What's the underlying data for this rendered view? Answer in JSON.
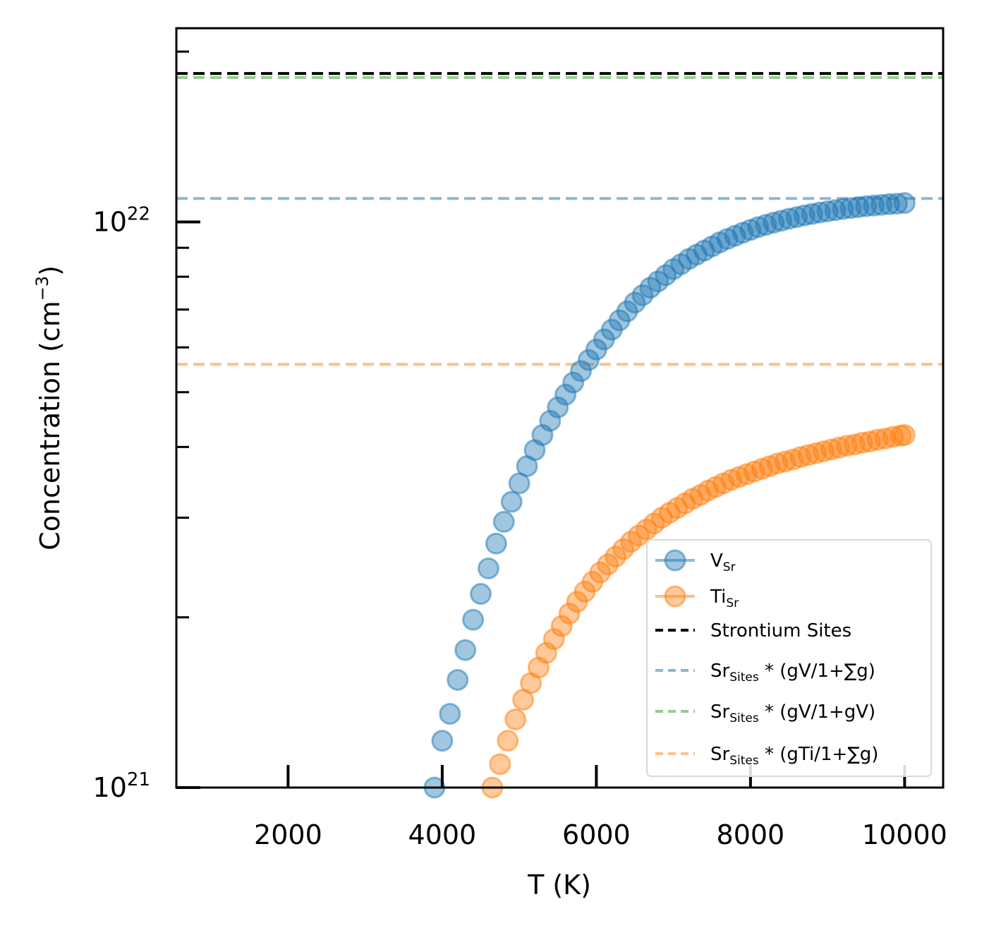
{
  "chart_data": {
    "type": "scatter",
    "title": "",
    "xlabel": "T (K)",
    "ylabel": {
      "base": "Concentration (cm",
      "sup": "−3",
      "tail": ")"
    },
    "xlim": [
      550,
      10500
    ],
    "ylim": [
      1e+21,
      2.2e+22
    ],
    "y_scale": "log",
    "x_ticks": [
      2000,
      4000,
      6000,
      8000,
      10000
    ],
    "x_tick_labels": [
      "2000",
      "4000",
      "6000",
      "8000",
      "10000"
    ],
    "y_tick_labels": [
      {
        "value": 1e+21,
        "base": "10",
        "exp": "21"
      },
      {
        "value": 1e+22,
        "base": "10",
        "exp": "22"
      }
    ],
    "grid": false,
    "legend_position": "lower-right",
    "legend": [
      {
        "kind": "marker",
        "color": "#1f77b4",
        "text": "V",
        "sub": "Sr"
      },
      {
        "kind": "marker",
        "color": "#ff7f0e",
        "text": "Ti",
        "sub": "Sr"
      },
      {
        "kind": "hline",
        "color": "#000000",
        "text": "Strontium Sites"
      },
      {
        "kind": "hline",
        "color": "#8ab7d7",
        "text": "Sr",
        "sub": "Sites",
        "formula": " * (gV/1+∑g)"
      },
      {
        "kind": "hline",
        "color": "#97cb90",
        "text": "Sr",
        "sub": "Sites",
        "formula": " * (gV/1+gV)"
      },
      {
        "kind": "hline",
        "color": "#ffbf87",
        "text": "Sr",
        "sub": "Sites",
        "formula": " * (gTi/1+∑g)"
      }
    ],
    "hlines": [
      {
        "name": "Strontium Sites",
        "y": 1.83e+22,
        "color": "#000000"
      },
      {
        "name": "SrSites * (gVSr/1+gVSr)",
        "y": 1.8e+22,
        "color": "#97cb90"
      },
      {
        "name": "SrSites * (gVSr/1+∑g)",
        "y": 1.1e+22,
        "color": "#8ab7d7"
      },
      {
        "name": "SrSites * (gTiSr/1+∑g)",
        "y": 5.6e+21,
        "color": "#ffbf87"
      }
    ],
    "series": [
      {
        "name": "VSr",
        "color": "#1f77b4",
        "x": [
          3900,
          4000,
          4100,
          4200,
          4300,
          4400,
          4500,
          4600,
          4700,
          4800,
          4900,
          5000,
          5100,
          5200,
          5300,
          5400,
          5500,
          5600,
          5700,
          5800,
          5900,
          6000,
          6100,
          6200,
          6300,
          6400,
          6500,
          6600,
          6700,
          6800,
          6900,
          7000,
          7100,
          7200,
          7300,
          7400,
          7500,
          7600,
          7700,
          7800,
          7900,
          8000,
          8100,
          8200,
          8300,
          8400,
          8500,
          8600,
          8700,
          8800,
          8900,
          9000,
          9100,
          9200,
          9300,
          9400,
          9500,
          9600,
          9700,
          9800,
          9900,
          10000
        ],
        "y": [
          1e+21,
          1.21e+21,
          1.35e+21,
          1.55e+21,
          1.75e+21,
          1.98e+21,
          2.2e+21,
          2.44e+21,
          2.7e+21,
          2.95e+21,
          3.2e+21,
          3.45e+21,
          3.7e+21,
          3.95e+21,
          4.2e+21,
          4.45e+21,
          4.7e+21,
          4.95e+21,
          5.2e+21,
          5.45e+21,
          5.7e+21,
          5.95e+21,
          6.2e+21,
          6.45e+21,
          6.7e+21,
          6.95e+21,
          7.2e+21,
          7.42e+21,
          7.65e+21,
          7.85e+21,
          8.05e+21,
          8.25e+21,
          8.42e+21,
          8.6e+21,
          8.75e+21,
          8.9e+21,
          9.05e+21,
          9.2e+21,
          9.33e+21,
          9.45e+21,
          9.57e+21,
          9.68e+21,
          9.79e+21,
          9.88e+21,
          9.97e+21,
          1.005e+22,
          1.013e+22,
          1.02e+22,
          1.027e+22,
          1.033e+22,
          1.039e+22,
          1.044e+22,
          1.049e+22,
          1.054e+22,
          1.058e+22,
          1.062e+22,
          1.066e+22,
          1.069e+22,
          1.072e+22,
          1.075e+22,
          1.077e+22,
          1.08e+22
        ]
      },
      {
        "name": "TiSr",
        "color": "#ff7f0e",
        "x": [
          4650,
          4750,
          4850,
          4950,
          5050,
          5150,
          5250,
          5350,
          5450,
          5550,
          5650,
          5750,
          5850,
          5950,
          6050,
          6150,
          6250,
          6350,
          6450,
          6550,
          6650,
          6750,
          6850,
          6950,
          7050,
          7150,
          7250,
          7350,
          7450,
          7550,
          7650,
          7750,
          7850,
          7950,
          8050,
          8150,
          8250,
          8350,
          8450,
          8550,
          8650,
          8750,
          8850,
          8950,
          9050,
          9150,
          9250,
          9350,
          9450,
          9550,
          9650,
          9750,
          9850,
          9950,
          10000
        ],
        "y": [
          1e+21,
          1.1e+21,
          1.21e+21,
          1.32e+21,
          1.43e+21,
          1.53e+21,
          1.63e+21,
          1.73e+21,
          1.83e+21,
          1.93e+21,
          2.03e+21,
          2.13e+21,
          2.22e+21,
          2.31e+21,
          2.4e+21,
          2.48e+21,
          2.56e+21,
          2.64e+21,
          2.72e+21,
          2.79e+21,
          2.86e+21,
          2.93e+21,
          3e+21,
          3.06e+21,
          3.12e+21,
          3.18e+21,
          3.24e+21,
          3.29e+21,
          3.35e+21,
          3.4e+21,
          3.45e+21,
          3.5e+21,
          3.54e+21,
          3.58e+21,
          3.62e+21,
          3.66e+21,
          3.7e+21,
          3.74e+21,
          3.77e+21,
          3.8e+21,
          3.84e+21,
          3.87e+21,
          3.9e+21,
          3.93e+21,
          3.96e+21,
          3.99e+21,
          4.02e+21,
          4.04e+21,
          4.07e+21,
          4.09e+21,
          4.12e+21,
          4.14e+21,
          4.17e+21,
          4.19e+21,
          4.2e+21
        ]
      }
    ]
  }
}
